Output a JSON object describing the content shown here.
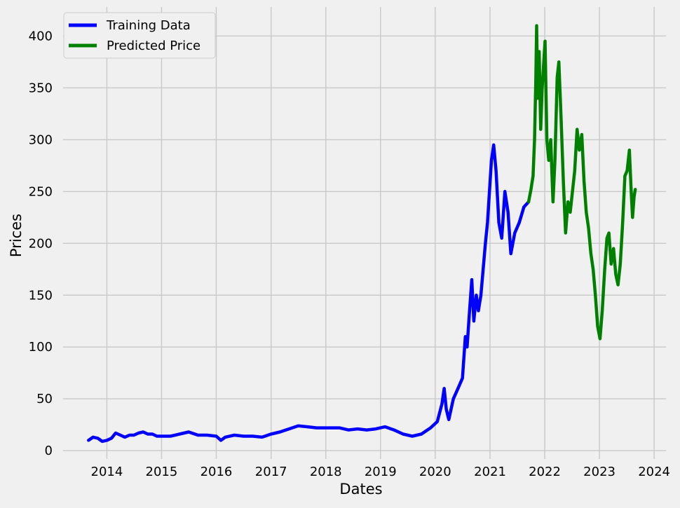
{
  "chart_data": {
    "type": "line",
    "title": "",
    "xlabel": "Dates",
    "ylabel": "Prices",
    "xlim": [
      "2013-03-15",
      "2024-03-20"
    ],
    "ylim": [
      -8,
      428
    ],
    "x_ticks": [
      {
        "date": "2014-01-01",
        "label": "2014"
      },
      {
        "date": "2015-01-01",
        "label": "2015"
      },
      {
        "date": "2016-01-01",
        "label": "2016"
      },
      {
        "date": "2017-01-01",
        "label": "2017"
      },
      {
        "date": "2018-01-01",
        "label": "2018"
      },
      {
        "date": "2019-01-01",
        "label": "2019"
      },
      {
        "date": "2020-01-01",
        "label": "2020"
      },
      {
        "date": "2021-01-01",
        "label": "2021"
      },
      {
        "date": "2022-01-01",
        "label": "2022"
      },
      {
        "date": "2023-01-01",
        "label": "2023"
      },
      {
        "date": "2024-01-01",
        "label": "2024"
      }
    ],
    "y_ticks": [
      0,
      50,
      100,
      150,
      200,
      250,
      300,
      350,
      400
    ],
    "grid": true,
    "legend": "top-left",
    "series": [
      {
        "name": "Training Data",
        "color": "#0000ff",
        "points": [
          [
            "2013-09-01",
            10
          ],
          [
            "2013-10-01",
            13
          ],
          [
            "2013-11-01",
            12
          ],
          [
            "2013-12-01",
            9
          ],
          [
            "2014-01-01",
            10
          ],
          [
            "2014-02-01",
            12
          ],
          [
            "2014-03-01",
            17
          ],
          [
            "2014-04-01",
            15
          ],
          [
            "2014-05-01",
            13
          ],
          [
            "2014-06-01",
            15
          ],
          [
            "2014-07-01",
            15
          ],
          [
            "2014-08-01",
            17
          ],
          [
            "2014-09-01",
            18
          ],
          [
            "2014-10-01",
            16
          ],
          [
            "2014-11-01",
            16
          ],
          [
            "2014-12-01",
            14
          ],
          [
            "2015-01-01",
            14
          ],
          [
            "2015-03-01",
            14
          ],
          [
            "2015-05-01",
            16
          ],
          [
            "2015-07-01",
            18
          ],
          [
            "2015-09-01",
            15
          ],
          [
            "2015-11-01",
            15
          ],
          [
            "2016-01-01",
            14
          ],
          [
            "2016-02-01",
            10
          ],
          [
            "2016-03-01",
            13
          ],
          [
            "2016-05-01",
            15
          ],
          [
            "2016-07-01",
            14
          ],
          [
            "2016-09-01",
            14
          ],
          [
            "2016-11-01",
            13
          ],
          [
            "2017-01-01",
            16
          ],
          [
            "2017-03-01",
            18
          ],
          [
            "2017-05-01",
            21
          ],
          [
            "2017-07-01",
            24
          ],
          [
            "2017-09-01",
            23
          ],
          [
            "2017-11-01",
            22
          ],
          [
            "2018-01-01",
            22
          ],
          [
            "2018-04-01",
            22
          ],
          [
            "2018-06-01",
            20
          ],
          [
            "2018-08-01",
            21
          ],
          [
            "2018-10-01",
            20
          ],
          [
            "2018-12-01",
            21
          ],
          [
            "2019-02-01",
            23
          ],
          [
            "2019-04-01",
            20
          ],
          [
            "2019-06-01",
            16
          ],
          [
            "2019-08-01",
            14
          ],
          [
            "2019-10-01",
            16
          ],
          [
            "2019-12-01",
            22
          ],
          [
            "2020-01-15",
            28
          ],
          [
            "2020-02-15",
            45
          ],
          [
            "2020-03-01",
            60
          ],
          [
            "2020-03-15",
            40
          ],
          [
            "2020-04-01",
            30
          ],
          [
            "2020-05-01",
            50
          ],
          [
            "2020-06-01",
            60
          ],
          [
            "2020-07-01",
            70
          ],
          [
            "2020-07-20",
            110
          ],
          [
            "2020-08-01",
            100
          ],
          [
            "2020-08-15",
            130
          ],
          [
            "2020-09-01",
            165
          ],
          [
            "2020-09-15",
            125
          ],
          [
            "2020-10-01",
            150
          ],
          [
            "2020-10-15",
            135
          ],
          [
            "2020-11-01",
            150
          ],
          [
            "2020-12-01",
            200
          ],
          [
            "2020-12-15",
            220
          ],
          [
            "2021-01-10",
            280
          ],
          [
            "2021-01-25",
            295
          ],
          [
            "2021-02-10",
            270
          ],
          [
            "2021-03-01",
            220
          ],
          [
            "2021-03-20",
            205
          ],
          [
            "2021-04-10",
            250
          ],
          [
            "2021-05-01",
            230
          ],
          [
            "2021-05-20",
            190
          ],
          [
            "2021-06-15",
            210
          ],
          [
            "2021-07-15",
            220
          ],
          [
            "2021-08-15",
            235
          ],
          [
            "2021-09-15",
            240
          ]
        ]
      },
      {
        "name": "Predicted Price",
        "color": "#008000",
        "points": [
          [
            "2021-09-15",
            240
          ],
          [
            "2021-10-01",
            252
          ],
          [
            "2021-10-15",
            265
          ],
          [
            "2021-10-25",
            300
          ],
          [
            "2021-11-03",
            360
          ],
          [
            "2021-11-08",
            410
          ],
          [
            "2021-11-15",
            340
          ],
          [
            "2021-11-25",
            385
          ],
          [
            "2021-12-05",
            310
          ],
          [
            "2021-12-15",
            350
          ],
          [
            "2022-01-03",
            395
          ],
          [
            "2022-01-15",
            300
          ],
          [
            "2022-01-28",
            280
          ],
          [
            "2022-02-10",
            300
          ],
          [
            "2022-02-25",
            240
          ],
          [
            "2022-03-10",
            280
          ],
          [
            "2022-03-25",
            360
          ],
          [
            "2022-04-05",
            375
          ],
          [
            "2022-04-20",
            320
          ],
          [
            "2022-05-05",
            260
          ],
          [
            "2022-05-20",
            210
          ],
          [
            "2022-06-05",
            240
          ],
          [
            "2022-06-20",
            230
          ],
          [
            "2022-07-05",
            250
          ],
          [
            "2022-07-20",
            270
          ],
          [
            "2022-08-05",
            310
          ],
          [
            "2022-08-20",
            290
          ],
          [
            "2022-09-05",
            305
          ],
          [
            "2022-09-20",
            260
          ],
          [
            "2022-10-05",
            230
          ],
          [
            "2022-10-20",
            215
          ],
          [
            "2022-11-05",
            190
          ],
          [
            "2022-11-20",
            175
          ],
          [
            "2022-12-05",
            150
          ],
          [
            "2022-12-20",
            120
          ],
          [
            "2023-01-05",
            108
          ],
          [
            "2023-01-20",
            135
          ],
          [
            "2023-02-05",
            175
          ],
          [
            "2023-02-20",
            205
          ],
          [
            "2023-03-05",
            210
          ],
          [
            "2023-03-20",
            180
          ],
          [
            "2023-04-05",
            195
          ],
          [
            "2023-04-20",
            170
          ],
          [
            "2023-05-05",
            160
          ],
          [
            "2023-05-20",
            180
          ],
          [
            "2023-06-05",
            220
          ],
          [
            "2023-06-20",
            265
          ],
          [
            "2023-07-05",
            270
          ],
          [
            "2023-07-20",
            290
          ],
          [
            "2023-08-01",
            250
          ],
          [
            "2023-08-10",
            225
          ],
          [
            "2023-08-20",
            245
          ],
          [
            "2023-08-28",
            252
          ]
        ]
      }
    ]
  }
}
